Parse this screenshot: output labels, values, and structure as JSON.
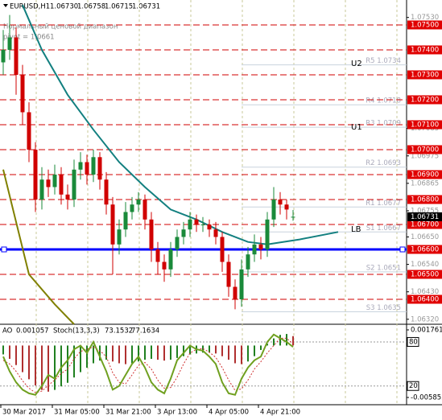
{
  "header": {
    "symbol": "EURUSD,H1",
    "quote": [
      "1.06730",
      "1.06758",
      "1.06715",
      "1.06731"
    ],
    "indicator_name": "Нормальный ценовой диапазон",
    "pivot_text": "pivot = 1.0661"
  },
  "chart_data": {
    "type": "candlestick",
    "bull_color": "#1a8a3a",
    "bear_color": "#d00000",
    "open": [
      1.0735,
      1.074,
      1.0745,
      1.073,
      1.0715,
      1.07,
      1.068,
      1.0688,
      1.0685,
      1.069,
      1.0682,
      1.068,
      1.0692,
      1.0695,
      1.069,
      1.0697,
      1.0688,
      1.0678,
      1.0662,
      1.0668,
      1.0675,
      1.0678,
      1.068,
      1.0672,
      1.066,
      1.0655,
      1.0652,
      1.066,
      1.0665,
      1.0668,
      1.0672,
      1.067,
      1.067,
      1.0668,
      1.0665,
      1.0655,
      1.0645,
      1.064,
      1.0652,
      1.0658,
      1.0662,
      1.066,
      1.0672,
      1.068,
      1.0678,
      1.0673
    ],
    "high": [
      1.0748,
      1.0754,
      1.0749,
      1.0734,
      1.0719,
      1.0703,
      1.0693,
      1.0692,
      1.0694,
      1.0693,
      1.0686,
      1.0696,
      1.0699,
      1.0698,
      1.07,
      1.0699,
      1.0691,
      1.0681,
      1.0672,
      1.0679,
      1.0681,
      1.0683,
      1.0682,
      1.0675,
      1.0663,
      1.0658,
      1.0663,
      1.0668,
      1.0671,
      1.0675,
      1.0674,
      1.0673,
      1.0672,
      1.0671,
      1.0667,
      1.0658,
      1.0648,
      1.0656,
      1.0661,
      1.0666,
      1.0665,
      1.0675,
      1.0685,
      1.0683,
      1.068,
      1.06758
    ],
    "low": [
      1.073,
      1.0736,
      1.0722,
      1.071,
      1.0695,
      1.0675,
      1.0676,
      1.0681,
      1.0682,
      1.0678,
      1.0676,
      1.0677,
      1.0688,
      1.0686,
      1.0687,
      1.0684,
      1.0674,
      1.065,
      1.0658,
      1.0665,
      1.0672,
      1.0675,
      1.0668,
      1.0655,
      1.065,
      1.0647,
      1.0649,
      1.0657,
      1.0662,
      1.0665,
      1.0667,
      1.0667,
      1.0665,
      1.0662,
      1.0651,
      1.0641,
      1.0636,
      1.0637,
      1.0649,
      1.0655,
      1.0656,
      1.0657,
      1.0669,
      1.0674,
      1.0672,
      1.06715
    ],
    "close": [
      1.074,
      1.0745,
      1.073,
      1.0715,
      1.07,
      1.068,
      1.0688,
      1.0685,
      1.069,
      1.0682,
      1.068,
      1.0692,
      1.0695,
      1.069,
      1.0697,
      1.0688,
      1.0678,
      1.0662,
      1.0668,
      1.0675,
      1.0678,
      1.068,
      1.0672,
      1.066,
      1.0655,
      1.0652,
      1.066,
      1.0665,
      1.0668,
      1.0672,
      1.067,
      1.067,
      1.0668,
      1.0665,
      1.0655,
      1.0645,
      1.064,
      1.0652,
      1.0658,
      1.0662,
      1.066,
      1.0672,
      1.068,
      1.0678,
      1.0676,
      1.06731
    ],
    "ylim": [
      1.063,
      1.076
    ],
    "yticks": [
      {
        "value": 1.0753,
        "label": "1.07530"
      },
      {
        "value": 1.07085,
        "label": "1.07085"
      },
      {
        "value": 1.06975,
        "label": "1.06975"
      },
      {
        "value": 1.06865,
        "label": "1.06865"
      },
      {
        "value": 1.06755,
        "label": "1.06755"
      },
      {
        "value": 1.0665,
        "label": "1.06650"
      },
      {
        "value": 1.0654,
        "label": "1.06540"
      },
      {
        "value": 1.0643,
        "label": "1.06430"
      },
      {
        "value": 1.0632,
        "label": "1.06320"
      }
    ],
    "levels": [
      {
        "value": 1.075,
        "label": "1.07500"
      },
      {
        "value": 1.074,
        "label": "1.07400"
      },
      {
        "value": 1.073,
        "label": "1.07300"
      },
      {
        "value": 1.072,
        "label": "1.07200"
      },
      {
        "value": 1.071,
        "label": "1.07100"
      },
      {
        "value": 1.07,
        "label": "1.07000"
      },
      {
        "value": 1.069,
        "label": "1.06900"
      },
      {
        "value": 1.068,
        "label": "1.06800"
      },
      {
        "value": 1.067,
        "label": "1.06700"
      },
      {
        "value": 1.066,
        "label": "1.06600"
      },
      {
        "value": 1.065,
        "label": "1.06500"
      },
      {
        "value": 1.064,
        "label": "1.06400"
      }
    ],
    "current_price": 1.06731,
    "support_line": 1.066,
    "pivots": [
      {
        "name": "R5 1.0734",
        "value": 1.0734
      },
      {
        "name": "R4 1.0718",
        "value": 1.0718
      },
      {
        "name": "R3 1.0709",
        "value": 1.0709
      },
      {
        "name": "R2 1.0693",
        "value": 1.0693
      },
      {
        "name": "R1 1.0677",
        "value": 1.0677
      },
      {
        "name": "S1 1.0667",
        "value": 1.0667
      },
      {
        "name": "S2 1.0651",
        "value": 1.0651
      },
      {
        "name": "S3 1.0635",
        "value": 1.0635
      }
    ],
    "annotations": [
      {
        "text": "U2",
        "value": 1.07345
      },
      {
        "text": "U1",
        "value": 1.0709
      },
      {
        "text": "LB",
        "value": 1.0668
      }
    ],
    "lines": [
      {
        "color": "#138080",
        "x": [
          3,
          6,
          10,
          14,
          18,
          22,
          26,
          30,
          34,
          38,
          41,
          46,
          52
        ],
        "values": [
          1.0758,
          1.074,
          1.0722,
          1.0708,
          1.0695,
          1.0685,
          1.0676,
          1.0672,
          1.0667,
          1.0663,
          1.0662,
          1.0664,
          1.0667
        ]
      },
      {
        "color": "#808000",
        "x": [
          0,
          4,
          8,
          11
        ],
        "values": [
          1.0692,
          1.065,
          1.0638,
          1.063
        ]
      }
    ],
    "time_labels": [
      "30 Mar 2017",
      "31 Mar 05:00",
      "31 Mar 21:00",
      "3 Apr 13:00",
      "4 Apr 05:00",
      "4 Apr 21:00"
    ]
  },
  "indicator": {
    "type": "oscillator",
    "ao_label": "AO",
    "stoch_label": "Stoch(13,3,3)",
    "ao": [
      -0.001,
      -0.0015,
      -0.0022,
      -0.003,
      -0.0038,
      -0.0045,
      -0.005,
      -0.0052,
      -0.005,
      -0.0046,
      -0.0042,
      -0.0036,
      -0.003,
      -0.0025,
      -0.002,
      -0.0017,
      -0.0016,
      -0.0018,
      -0.002,
      -0.0021,
      -0.002,
      -0.0018,
      -0.0016,
      -0.0015,
      -0.0016,
      -0.0017,
      -0.0016,
      -0.0014,
      -0.0012,
      -0.001,
      -0.0009,
      -0.0008,
      -0.0008,
      -0.0009,
      -0.0012,
      -0.0016,
      -0.002,
      -0.0021,
      -0.0018,
      -0.0012,
      -0.0005,
      0.0002,
      0.0008,
      0.0012,
      0.0013,
      0.001057
    ],
    "stoch_main": [
      60,
      40,
      25,
      15,
      10,
      8,
      20,
      35,
      30,
      45,
      55,
      70,
      75,
      65,
      80,
      60,
      40,
      15,
      20,
      35,
      50,
      60,
      45,
      25,
      15,
      10,
      30,
      55,
      65,
      75,
      70,
      68,
      60,
      50,
      25,
      10,
      8,
      30,
      45,
      55,
      60,
      80,
      90,
      85,
      80,
      73.1532
    ],
    "stoch_signal": [
      55,
      50,
      40,
      27,
      17,
      11,
      13,
      21,
      28,
      37,
      43,
      57,
      67,
      70,
      73,
      68,
      60,
      38,
      25,
      23,
      35,
      48,
      52,
      43,
      28,
      17,
      18,
      32,
      50,
      65,
      70,
      71,
      66,
      59,
      45,
      28,
      14,
      16,
      28,
      43,
      53,
      65,
      75,
      85,
      85,
      77.1634
    ],
    "ylim": [
      -0.005852,
      0.001761
    ],
    "yticks": [
      0.001761,
      -0.005852
    ],
    "stoch_ylim": [
      0,
      100
    ],
    "stoch_levels": [
      80,
      20
    ]
  }
}
